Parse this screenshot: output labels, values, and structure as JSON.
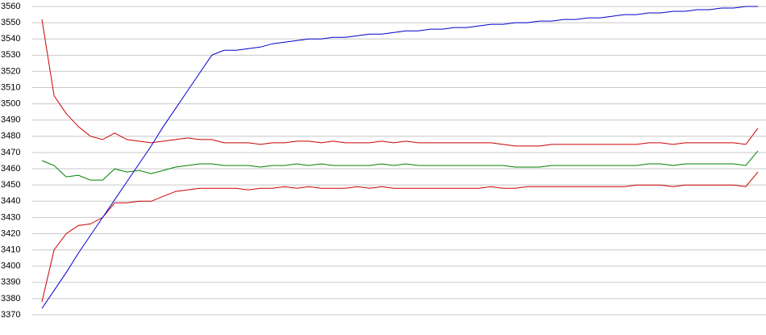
{
  "chart_data": {
    "type": "line",
    "categories": [
      null,
      null,
      null,
      null,
      null,
      null,
      null,
      null,
      null,
      null,
      null,
      null,
      null,
      null,
      null,
      null,
      null,
      null,
      null,
      null,
      null,
      null,
      null,
      null,
      null,
      null,
      null,
      null,
      null,
      null,
      null,
      null,
      null,
      null,
      null,
      null,
      null,
      null,
      null,
      null,
      null,
      null,
      null,
      null,
      null,
      null,
      null,
      null,
      null,
      null,
      null,
      null,
      null,
      null,
      null,
      null,
      null,
      null,
      null,
      null
    ],
    "series": [
      {
        "color": "#cc0000",
        "values": [
          3552,
          3505,
          3494,
          3486,
          3480,
          3478,
          3482,
          3478,
          3477,
          3476,
          3477,
          3478,
          3479,
          3478,
          3478,
          3476,
          3476,
          3476,
          3475,
          3476,
          3476,
          3477,
          3477,
          3476,
          3477,
          3476,
          3476,
          3476,
          3477,
          3476,
          3477,
          3476,
          3476,
          3476,
          3476,
          3476,
          3476,
          3476,
          3475,
          3474,
          3474,
          3474,
          3475,
          3475,
          3475,
          3475,
          3475,
          3475,
          3475,
          3475,
          3476,
          3476,
          3475,
          3476,
          3476,
          3476,
          3476,
          3476,
          3475,
          3485
        ]
      },
      {
        "color": "#008000",
        "values": [
          3465,
          3462,
          3455,
          3456,
          3453,
          3453,
          3460,
          3458,
          3459,
          3457,
          3459,
          3461,
          3462,
          3463,
          3463,
          3462,
          3462,
          3462,
          3461,
          3462,
          3462,
          3463,
          3462,
          3463,
          3462,
          3462,
          3462,
          3462,
          3463,
          3462,
          3463,
          3462,
          3462,
          3462,
          3462,
          3462,
          3462,
          3462,
          3462,
          3461,
          3461,
          3461,
          3462,
          3462,
          3462,
          3462,
          3462,
          3462,
          3462,
          3462,
          3463,
          3463,
          3462,
          3463,
          3463,
          3463,
          3463,
          3463,
          3462,
          3471
        ]
      },
      {
        "color": "#cc0000",
        "values": [
          3378,
          3410,
          3420,
          3425,
          3426,
          3430,
          3439,
          3439,
          3440,
          3440,
          3443,
          3446,
          3447,
          3448,
          3448,
          3448,
          3448,
          3447,
          3448,
          3448,
          3449,
          3448,
          3449,
          3448,
          3448,
          3448,
          3449,
          3448,
          3449,
          3448,
          3448,
          3448,
          3448,
          3448,
          3448,
          3448,
          3448,
          3449,
          3448,
          3448,
          3449,
          3449,
          3449,
          3449,
          3449,
          3449,
          3449,
          3449,
          3449,
          3450,
          3450,
          3450,
          3449,
          3450,
          3450,
          3450,
          3450,
          3450,
          3449,
          3458
        ]
      },
      {
        "color": "#0000cc",
        "values": [
          3374,
          3385,
          3396,
          3408,
          3419,
          3430,
          3441,
          3452,
          3463,
          3474,
          3486,
          3497,
          3508,
          3519,
          3530,
          3533,
          3533,
          3534,
          3535,
          3537,
          3538,
          3539,
          3540,
          3540,
          3541,
          3541,
          3542,
          3543,
          3543,
          3544,
          3545,
          3545,
          3546,
          3546,
          3547,
          3547,
          3548,
          3549,
          3549,
          3550,
          3550,
          3551,
          3551,
          3552,
          3552,
          3553,
          3553,
          3554,
          3555,
          3555,
          3556,
          3556,
          3557,
          3557,
          3558,
          3558,
          3559,
          3559,
          3560,
          3560
        ]
      }
    ],
    "ylim": [
      3370,
      3560
    ],
    "yticks": [
      3370,
      3380,
      3390,
      3400,
      3410,
      3420,
      3430,
      3440,
      3450,
      3460,
      3470,
      3480,
      3490,
      3500,
      3510,
      3520,
      3530,
      3540,
      3550,
      3560
    ],
    "grid": true
  }
}
